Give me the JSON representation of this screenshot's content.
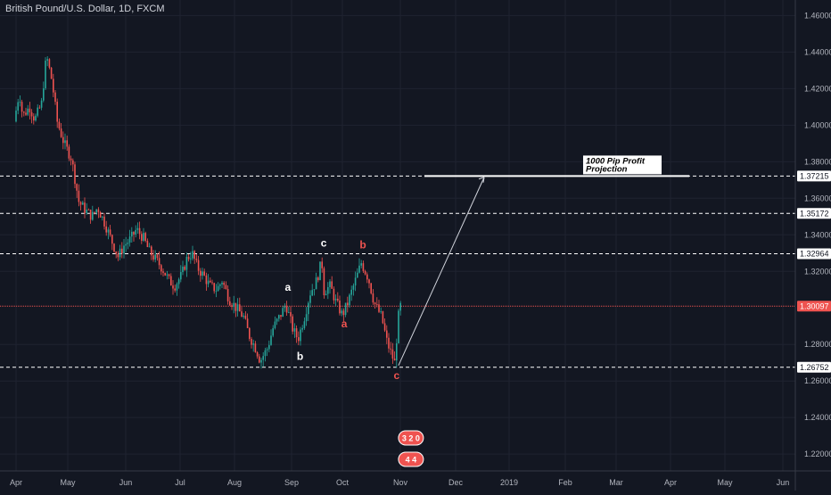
{
  "header": {
    "symbol_title": "British Pound/U.S. Dollar, 1D, FXCM"
  },
  "colors": {
    "background": "#131722",
    "grid": "#1f2330",
    "bull": "#26a69a",
    "bear": "#ef5350",
    "text": "#b2b5be",
    "level_line": "#ffffff",
    "current_price": "#ef5350",
    "wave_white": "#ffffff",
    "wave_red": "#ef5350"
  },
  "chart_data": {
    "type": "candlestick",
    "title": "British Pound/U.S. Dollar, 1D, FXCM",
    "x_ticks": [
      "Apr",
      "May",
      "Jun",
      "Jul",
      "Aug",
      "Sep",
      "Oct",
      "Nov",
      "Dec",
      "2019",
      "Feb",
      "Mar",
      "Apr",
      "May",
      "Jun"
    ],
    "y_ticks": [
      "1.46000",
      "1.44000",
      "1.42000",
      "1.40000",
      "1.38000",
      "1.36000",
      "1.34000",
      "1.32000",
      "1.28000",
      "1.26000",
      "1.24000",
      "1.22000"
    ],
    "ylim": [
      1.2108,
      1.4685
    ],
    "horizontal_levels": [
      {
        "value": 1.37215,
        "label": "1.37215",
        "style": "dashed"
      },
      {
        "value": 1.35172,
        "label": "1.35172",
        "style": "dashed"
      },
      {
        "value": 1.32964,
        "label": "1.32964",
        "style": "dashed"
      },
      {
        "value": 1.26752,
        "label": "1.26752",
        "style": "dashed"
      }
    ],
    "current_price": {
      "value": 1.30097,
      "label": "1.30097"
    },
    "price_path": [
      [
        "2018-04-01",
        1.402
      ],
      [
        "2018-04-04",
        1.418
      ],
      [
        "2018-04-06",
        1.405
      ],
      [
        "2018-04-10",
        1.41
      ],
      [
        "2018-04-13",
        1.403
      ],
      [
        "2018-04-17",
        1.412
      ],
      [
        "2018-04-19",
        1.432
      ],
      [
        "2018-04-20",
        1.437
      ],
      [
        "2018-04-23",
        1.424
      ],
      [
        "2018-04-26",
        1.402
      ],
      [
        "2018-04-30",
        1.39
      ],
      [
        "2018-05-04",
        1.382
      ],
      [
        "2018-05-08",
        1.358
      ],
      [
        "2018-05-11",
        1.354
      ],
      [
        "2018-05-15",
        1.35
      ],
      [
        "2018-05-18",
        1.355
      ],
      [
        "2018-05-22",
        1.346
      ],
      [
        "2018-05-25",
        1.338
      ],
      [
        "2018-05-29",
        1.328
      ],
      [
        "2018-06-01",
        1.334
      ],
      [
        "2018-06-05",
        1.338
      ],
      [
        "2018-06-08",
        1.343
      ],
      [
        "2018-06-12",
        1.338
      ],
      [
        "2018-06-15",
        1.331
      ],
      [
        "2018-06-19",
        1.326
      ],
      [
        "2018-06-22",
        1.322
      ],
      [
        "2018-06-26",
        1.315
      ],
      [
        "2018-06-29",
        1.312
      ],
      [
        "2018-07-03",
        1.318
      ],
      [
        "2018-07-06",
        1.327
      ],
      [
        "2018-07-09",
        1.33
      ],
      [
        "2018-07-12",
        1.322
      ],
      [
        "2018-07-16",
        1.317
      ],
      [
        "2018-07-19",
        1.312
      ],
      [
        "2018-07-23",
        1.31
      ],
      [
        "2018-07-26",
        1.315
      ],
      [
        "2018-07-30",
        1.305
      ],
      [
        "2018-08-03",
        1.3
      ],
      [
        "2018-08-07",
        1.295
      ],
      [
        "2018-08-10",
        1.285
      ],
      [
        "2018-08-14",
        1.277
      ],
      [
        "2018-08-16",
        1.271
      ],
      [
        "2018-08-20",
        1.278
      ],
      [
        "2018-08-23",
        1.289
      ],
      [
        "2018-08-27",
        1.296
      ],
      [
        "2018-08-30",
        1.302
      ],
      [
        "2018-09-03",
        1.288
      ],
      [
        "2018-09-06",
        1.283
      ],
      [
        "2018-09-10",
        1.296
      ],
      [
        "2018-09-13",
        1.308
      ],
      [
        "2018-09-17",
        1.315
      ],
      [
        "2018-09-20",
        1.326
      ],
      [
        "2018-09-21",
        1.309
      ],
      [
        "2018-09-25",
        1.312
      ],
      [
        "2018-09-28",
        1.304
      ],
      [
        "2018-10-02",
        1.296
      ],
      [
        "2018-10-05",
        1.303
      ],
      [
        "2018-10-08",
        1.312
      ],
      [
        "2018-10-11",
        1.321
      ],
      [
        "2018-10-12",
        1.325
      ],
      [
        "2018-10-16",
        1.316
      ],
      [
        "2018-10-19",
        1.303
      ],
      [
        "2018-10-23",
        1.295
      ],
      [
        "2018-10-26",
        1.281
      ],
      [
        "2018-10-30",
        1.27
      ],
      [
        "2018-11-01",
        1.295
      ],
      [
        "2018-11-02",
        1.301
      ]
    ]
  },
  "annotations": {
    "wave_labels": [
      {
        "text": "a",
        "date": "2018-08-30",
        "price": 1.3095,
        "color": "white"
      },
      {
        "text": "b",
        "date": "2018-09-06",
        "price": 1.2715,
        "color": "white"
      },
      {
        "text": "c",
        "date": "2018-09-20",
        "price": 1.3335,
        "color": "white"
      },
      {
        "text": "a",
        "date": "2018-10-02",
        "price": 1.2895,
        "color": "red"
      },
      {
        "text": "b",
        "date": "2018-10-12",
        "price": 1.3325,
        "color": "red"
      },
      {
        "text": "c",
        "date": "2018-10-30",
        "price": 1.261,
        "color": "red"
      }
    ],
    "projection_label": [
      "1000 Pip Profit",
      "Projection"
    ],
    "event_icons": [
      {
        "text": "3 2 0",
        "date": "2018-10-31"
      },
      {
        "text": "4 4",
        "date": "2018-10-31"
      }
    ]
  }
}
